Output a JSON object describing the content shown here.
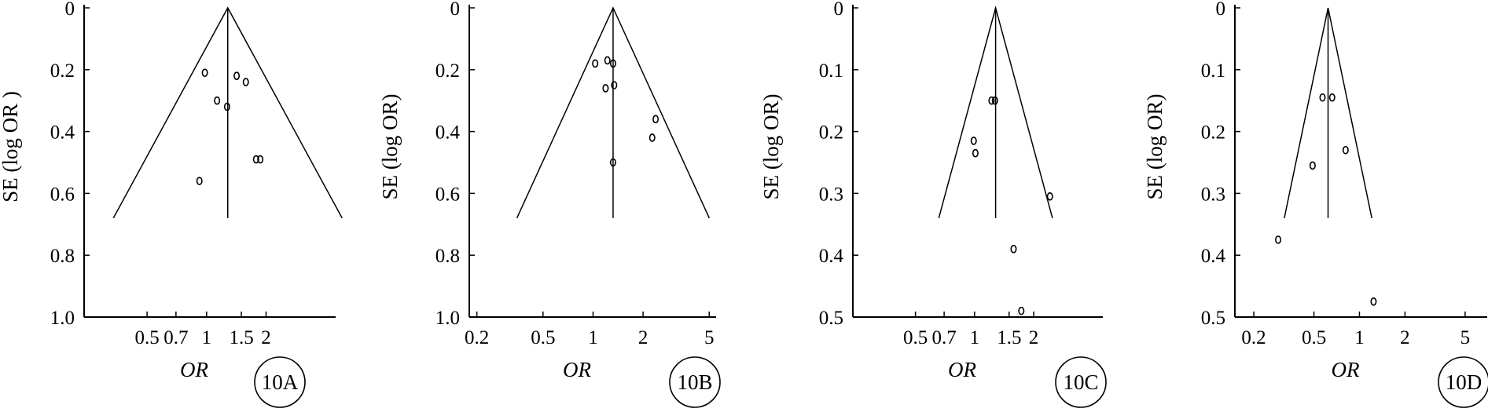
{
  "figure": {
    "panels": [
      {
        "label": "10A"
      },
      {
        "label": "10B"
      },
      {
        "label": "10C"
      },
      {
        "label": "10D"
      }
    ]
  },
  "chart_data": [
    {
      "type": "scatter",
      "title": "",
      "panel_label": "10A",
      "xlabel": "OR",
      "ylabel": "SE (log OR )",
      "x_scale": "log",
      "x_ticks": [
        0.5,
        0.7,
        1,
        1.5,
        2
      ],
      "x_tick_labels": [
        "0.5",
        "0.7",
        "1",
        "1.5",
        "2"
      ],
      "xlim": [
        0.24,
        4.5
      ],
      "y_ticks": [
        0,
        0.2,
        0.4,
        0.6,
        0.8,
        1.0
      ],
      "y_tick_labels": [
        "0",
        "0.2",
        "0.4",
        "0.6",
        "0.8",
        "1.0"
      ],
      "ylim": [
        0,
        1.0
      ],
      "y_inverted": true,
      "pooled_or": 1.28,
      "funnel_max_se": 0.68,
      "points": [
        {
          "x": 0.98,
          "y": 0.21
        },
        {
          "x": 1.42,
          "y": 0.22
        },
        {
          "x": 1.58,
          "y": 0.24
        },
        {
          "x": 1.13,
          "y": 0.3
        },
        {
          "x": 1.27,
          "y": 0.32
        },
        {
          "x": 1.78,
          "y": 0.49
        },
        {
          "x": 1.87,
          "y": 0.49
        },
        {
          "x": 0.92,
          "y": 0.56
        }
      ]
    },
    {
      "type": "scatter",
      "title": "",
      "panel_label": "10B",
      "xlabel": "OR",
      "ylabel": "SE (log OR)",
      "x_scale": "log",
      "x_ticks": [
        0.2,
        0.5,
        1,
        2,
        5
      ],
      "x_tick_labels": [
        "0.2",
        "0.5",
        "1",
        "2",
        "5"
      ],
      "xlim": [
        0.18,
        5.5
      ],
      "y_ticks": [
        0,
        0.2,
        0.4,
        0.6,
        0.8,
        1.0
      ],
      "y_tick_labels": [
        "0",
        "0.2",
        "0.4",
        "0.6",
        "0.8",
        "1.0"
      ],
      "ylim": [
        0,
        1.0
      ],
      "y_inverted": true,
      "pooled_or": 1.32,
      "funnel_max_se": 0.68,
      "points": [
        {
          "x": 1.03,
          "y": 0.18
        },
        {
          "x": 1.22,
          "y": 0.17
        },
        {
          "x": 1.32,
          "y": 0.18
        },
        {
          "x": 1.19,
          "y": 0.26
        },
        {
          "x": 1.34,
          "y": 0.25
        },
        {
          "x": 2.38,
          "y": 0.36
        },
        {
          "x": 2.27,
          "y": 0.42
        },
        {
          "x": 1.32,
          "y": 0.5
        }
      ]
    },
    {
      "type": "scatter",
      "title": "",
      "panel_label": "10C",
      "xlabel": "OR",
      "ylabel": "SE (log OR)",
      "x_scale": "log",
      "x_ticks": [
        0.5,
        0.7,
        1,
        1.5,
        2
      ],
      "x_tick_labels": [
        "0.5",
        "0.7",
        "1",
        "1.5",
        "2"
      ],
      "xlim": [
        0.24,
        4.5
      ],
      "y_ticks": [
        0,
        0.1,
        0.2,
        0.3,
        0.4,
        0.5
      ],
      "y_tick_labels": [
        "0",
        "0.1",
        "0.2",
        "0.3",
        "0.4",
        "0.5"
      ],
      "ylim": [
        0,
        0.5
      ],
      "y_inverted": true,
      "pooled_or": 1.28,
      "funnel_max_se": 0.34,
      "points": [
        {
          "x": 1.22,
          "y": 0.15
        },
        {
          "x": 1.27,
          "y": 0.15
        },
        {
          "x": 0.99,
          "y": 0.215
        },
        {
          "x": 1.01,
          "y": 0.235
        },
        {
          "x": 2.42,
          "y": 0.305
        },
        {
          "x": 1.58,
          "y": 0.39
        },
        {
          "x": 1.73,
          "y": 0.49
        }
      ]
    },
    {
      "type": "scatter",
      "title": "",
      "panel_label": "10D",
      "xlabel": "OR",
      "ylabel": "SE (log OR)",
      "x_scale": "log",
      "x_ticks": [
        0.2,
        0.5,
        1,
        2,
        5
      ],
      "x_tick_labels": [
        "0.2",
        "0.5",
        "1",
        "2",
        "5"
      ],
      "xlim": [
        0.15,
        7.0
      ],
      "y_ticks": [
        0,
        0.1,
        0.2,
        0.3,
        0.4,
        0.5
      ],
      "y_tick_labels": [
        "0",
        "0.1",
        "0.2",
        "0.3",
        "0.4",
        "0.5"
      ],
      "ylim": [
        0,
        0.5
      ],
      "y_inverted": true,
      "pooled_or": 0.62,
      "funnel_max_se": 0.34,
      "points": [
        {
          "x": 0.57,
          "y": 0.145
        },
        {
          "x": 0.66,
          "y": 0.145
        },
        {
          "x": 0.81,
          "y": 0.23
        },
        {
          "x": 0.49,
          "y": 0.255
        },
        {
          "x": 0.29,
          "y": 0.375
        },
        {
          "x": 1.24,
          "y": 0.475
        }
      ]
    }
  ]
}
